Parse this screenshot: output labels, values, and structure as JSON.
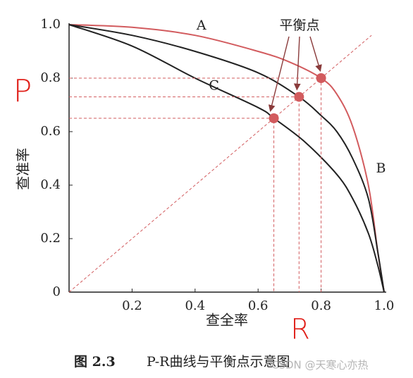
{
  "chart_data": {
    "type": "line",
    "xlabel": "查全率",
    "ylabel": "查准率",
    "xlim": [
      0,
      1
    ],
    "ylim": [
      0,
      1
    ],
    "xticks": [
      0.2,
      0.4,
      0.6,
      0.8,
      {
        "value": 1,
        "label": "1.0"
      }
    ],
    "yticks": [
      0,
      0.2,
      0.4,
      0.6,
      0.8,
      {
        "value": 1,
        "label": "1.0"
      }
    ],
    "series": [
      {
        "name": "A",
        "color": "#d25b5e",
        "x": [
          0,
          0.2,
          0.4,
          0.6,
          0.7,
          0.8,
          0.85,
          0.9,
          0.95,
          0.98,
          1.0
        ],
        "values": [
          1.0,
          0.99,
          0.96,
          0.9,
          0.86,
          0.8,
          0.74,
          0.62,
          0.4,
          0.15,
          0
        ]
      },
      {
        "name": "B",
        "color": "#222222",
        "x": [
          0,
          0.2,
          0.4,
          0.6,
          0.73,
          0.8,
          0.85,
          0.9,
          0.95,
          0.98,
          1.0
        ],
        "values": [
          1.0,
          0.96,
          0.9,
          0.82,
          0.73,
          0.66,
          0.6,
          0.5,
          0.35,
          0.15,
          0
        ]
      },
      {
        "name": "C",
        "color": "#222222",
        "x": [
          0,
          0.2,
          0.4,
          0.6,
          0.65,
          0.75,
          0.85,
          0.9,
          0.95,
          0.98,
          1.0
        ],
        "values": [
          1.0,
          0.92,
          0.8,
          0.69,
          0.65,
          0.56,
          0.44,
          0.35,
          0.22,
          0.1,
          0
        ]
      }
    ],
    "break_even": {
      "label": "平衡点",
      "color": "#d25b5e",
      "x": [
        0.65,
        0.73,
        0.8
      ],
      "values": [
        0.65,
        0.73,
        0.8
      ]
    },
    "handwritten": {
      "y": "P",
      "x": "R"
    },
    "caption": {
      "number": "图 2.3",
      "text": "P-R曲线与平衡点示意图"
    },
    "watermark": "CSDN @天寒心亦热"
  }
}
